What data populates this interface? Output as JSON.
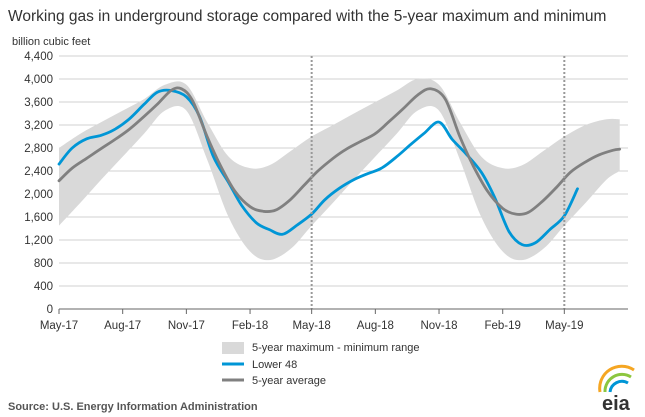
{
  "chart_data": {
    "type": "area",
    "title": "Working gas in underground  storage compared with the 5-year maximum and minimum",
    "ylabel": "billion cubic feet",
    "xlabel": "",
    "ylim": [
      0,
      4400
    ],
    "yticks": [
      0,
      400,
      800,
      1200,
      1600,
      2000,
      2400,
      2800,
      3200,
      3600,
      4000,
      4400
    ],
    "ytick_labels": [
      "0",
      "400",
      "800",
      "1,200",
      "1,600",
      "2,000",
      "2,400",
      "2,800",
      "3,200",
      "3,600",
      "4,000",
      "4,400"
    ],
    "xlim": [
      "2017-05-01",
      "2019-08-01"
    ],
    "xticks": [
      "2017-05-01",
      "2017-08-01",
      "2017-11-01",
      "2018-02-01",
      "2018-05-01",
      "2018-08-01",
      "2018-11-01",
      "2019-02-01",
      "2019-05-01"
    ],
    "xtick_labels": [
      "May-17",
      "Aug-17",
      "Nov-17",
      "Feb-18",
      "May-18",
      "Aug-18",
      "Nov-18",
      "Feb-19",
      "May-19"
    ],
    "vertical_markers": [
      "2018-05-01",
      "2019-05-01"
    ],
    "grid": "horizontal",
    "legend_position": "bottom-center",
    "series": [
      {
        "name": "5-year maximum - minimum range",
        "kind": "range",
        "color": "#d9d9d9",
        "x": [
          "2017-05-01",
          "2017-06-01",
          "2017-07-01",
          "2017-08-01",
          "2017-09-01",
          "2017-10-01",
          "2017-11-01",
          "2017-12-01",
          "2018-01-01",
          "2018-02-01",
          "2018-03-01",
          "2018-04-01",
          "2018-05-01",
          "2018-06-01",
          "2018-07-01",
          "2018-08-01",
          "2018-09-01",
          "2018-10-01",
          "2018-11-01",
          "2018-12-01",
          "2019-01-01",
          "2019-02-01",
          "2019-03-01",
          "2019-04-01",
          "2019-05-01",
          "2019-06-01",
          "2019-07-01",
          "2019-07-20"
        ],
        "low": [
          1450,
          1850,
          2250,
          2650,
          3050,
          3450,
          3450,
          2600,
          1600,
          1000,
          850,
          1050,
          1450,
          1850,
          2250,
          2650,
          3050,
          3450,
          3450,
          2600,
          1600,
          1000,
          850,
          1050,
          1450,
          1850,
          2250,
          2400
        ],
        "high": [
          2800,
          3050,
          3250,
          3450,
          3650,
          3900,
          3900,
          3250,
          2650,
          2450,
          2500,
          2750,
          3000,
          3200,
          3400,
          3600,
          3800,
          4000,
          3900,
          3250,
          2650,
          2450,
          2500,
          2750,
          3000,
          3200,
          3300,
          3300
        ]
      },
      {
        "name": "Lower 48",
        "kind": "line",
        "color": "#0096d6",
        "x": [
          "2017-05-01",
          "2017-05-20",
          "2017-06-10",
          "2017-07-01",
          "2017-07-20",
          "2017-08-10",
          "2017-09-01",
          "2017-09-20",
          "2017-10-10",
          "2017-11-01",
          "2017-11-20",
          "2017-12-10",
          "2018-01-01",
          "2018-01-20",
          "2018-02-10",
          "2018-03-01",
          "2018-03-20",
          "2018-04-10",
          "2018-05-01",
          "2018-05-20",
          "2018-06-10",
          "2018-07-01",
          "2018-07-20",
          "2018-08-10",
          "2018-09-01",
          "2018-09-20",
          "2018-10-10",
          "2018-11-01",
          "2018-11-20",
          "2018-12-10",
          "2019-01-01",
          "2019-01-20",
          "2019-02-10",
          "2019-03-01",
          "2019-03-20",
          "2019-04-10",
          "2019-05-01",
          "2019-05-20"
        ],
        "y": [
          2520,
          2800,
          2960,
          3020,
          3120,
          3300,
          3560,
          3770,
          3800,
          3690,
          3350,
          2650,
          2200,
          1800,
          1500,
          1380,
          1300,
          1460,
          1650,
          1900,
          2100,
          2250,
          2350,
          2450,
          2650,
          2850,
          3050,
          3250,
          2950,
          2700,
          2380,
          1950,
          1350,
          1120,
          1150,
          1380,
          1620,
          2090
        ]
      },
      {
        "name": "5-year average",
        "kind": "line",
        "color": "#808080",
        "x": [
          "2017-05-01",
          "2017-05-20",
          "2017-06-10",
          "2017-07-01",
          "2017-07-20",
          "2017-08-10",
          "2017-09-01",
          "2017-09-20",
          "2017-10-10",
          "2017-10-25",
          "2017-11-10",
          "2017-12-01",
          "2017-12-20",
          "2018-01-10",
          "2018-02-01",
          "2018-02-20",
          "2018-03-10",
          "2018-03-31",
          "2018-04-20",
          "2018-05-10",
          "2018-06-01",
          "2018-06-20",
          "2018-07-10",
          "2018-08-01",
          "2018-08-20",
          "2018-09-10",
          "2018-10-01",
          "2018-10-20",
          "2018-11-10",
          "2018-12-01",
          "2018-12-20",
          "2019-01-10",
          "2019-02-01",
          "2019-02-20",
          "2019-03-10",
          "2019-03-31",
          "2019-04-20",
          "2019-05-10",
          "2019-06-01",
          "2019-06-20",
          "2019-07-10",
          "2019-07-20"
        ],
        "y": [
          2230,
          2450,
          2620,
          2790,
          2940,
          3120,
          3350,
          3560,
          3800,
          3830,
          3620,
          3000,
          2500,
          2050,
          1780,
          1700,
          1720,
          1900,
          2150,
          2400,
          2620,
          2780,
          2910,
          3050,
          3250,
          3480,
          3720,
          3830,
          3650,
          3000,
          2500,
          2050,
          1750,
          1650,
          1680,
          1880,
          2120,
          2380,
          2560,
          2680,
          2760,
          2780
        ]
      }
    ]
  },
  "legend": [
    {
      "label": "5-year maximum - minimum range"
    },
    {
      "label": "Lower 48"
    },
    {
      "label": "5-year average"
    }
  ],
  "source": "Source:  U.S. Energy Information Administration",
  "logo": {
    "text": "eia",
    "colors": [
      "#f5a623",
      "#8cc63f",
      "#0096d6"
    ]
  }
}
